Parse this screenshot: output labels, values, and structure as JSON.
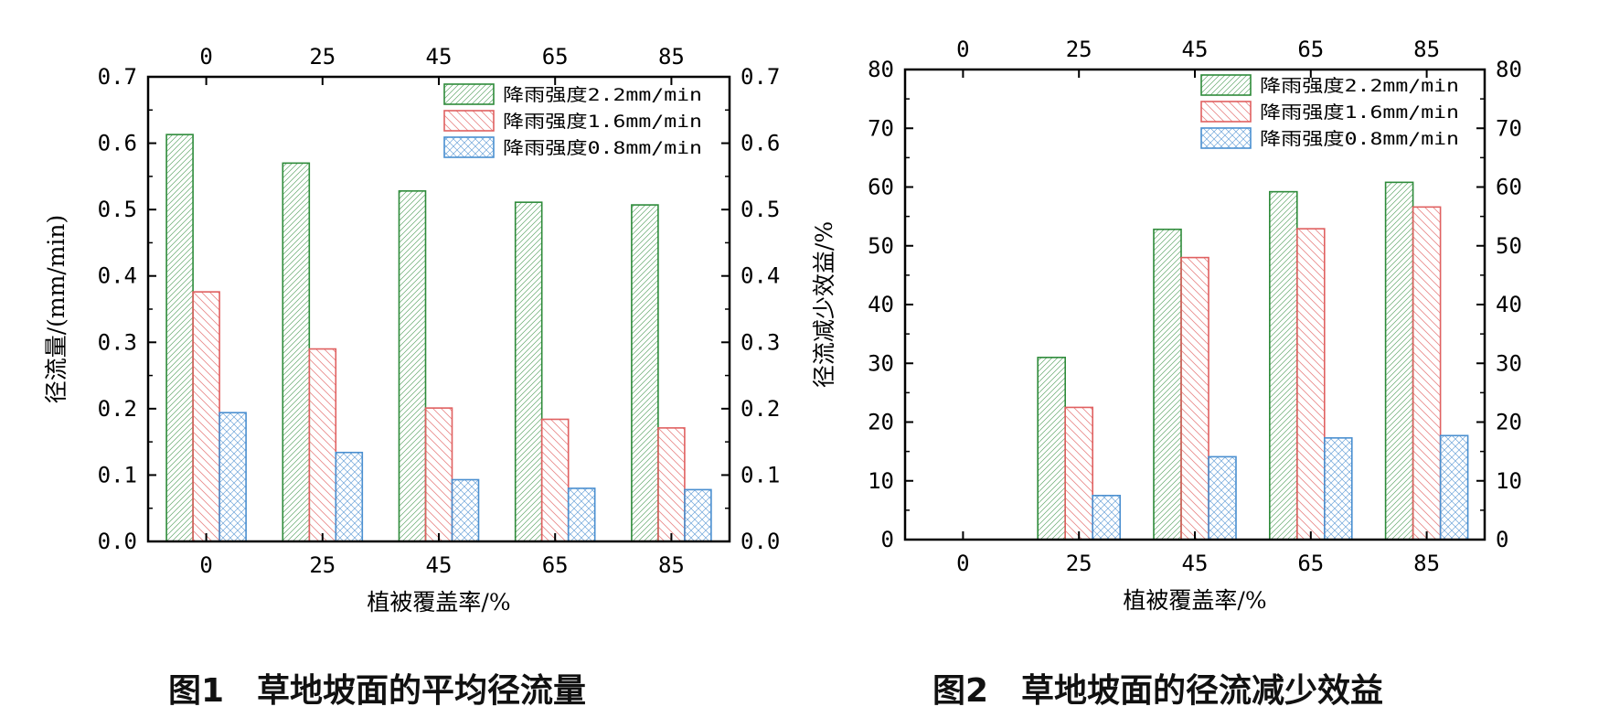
{
  "captions": {
    "fig1": "图1　草地坡面的平均径流量",
    "fig2": "图2　草地坡面的径流减少效益"
  },
  "colors": {
    "green": "#2e8b3a",
    "red": "#e06060",
    "blue": "#4a8fd0"
  },
  "chart_data": [
    {
      "type": "bar",
      "categories": [
        "0",
        "25",
        "45",
        "65",
        "85"
      ],
      "series": [
        {
          "name": "降雨强度2.2mm/min",
          "values": [
            0.613,
            0.57,
            0.528,
            0.511,
            0.507
          ]
        },
        {
          "name": "降雨强度1.6mm/min",
          "values": [
            0.376,
            0.29,
            0.201,
            0.184,
            0.171
          ]
        },
        {
          "name": "降雨强度0.8mm/min",
          "values": [
            0.194,
            0.134,
            0.093,
            0.08,
            0.078
          ]
        }
      ],
      "xlabel": "植被覆盖率/%",
      "ylabel": "径流量/(mm/min)",
      "ylim": [
        0,
        0.7
      ],
      "yticks": [
        "0.0",
        "0.1",
        "0.2",
        "0.3",
        "0.4",
        "0.5",
        "0.6",
        "0.7"
      ],
      "legend_position": "top-right",
      "grid": false
    },
    {
      "type": "bar",
      "categories": [
        "0",
        "25",
        "45",
        "65",
        "85"
      ],
      "series": [
        {
          "name": "降雨强度2.2mm/min",
          "values": [
            0,
            31.0,
            52.8,
            59.2,
            60.8
          ]
        },
        {
          "name": "降雨强度1.6mm/min",
          "values": [
            0,
            22.5,
            48.0,
            52.9,
            56.6
          ]
        },
        {
          "name": "降雨强度0.8mm/min",
          "values": [
            0,
            7.5,
            14.1,
            17.3,
            17.7
          ]
        }
      ],
      "xlabel": "植被覆盖率/%",
      "ylabel": "径流减少效益/%",
      "ylim": [
        0,
        80
      ],
      "yticks": [
        "0",
        "10",
        "20",
        "30",
        "40",
        "50",
        "60",
        "70",
        "80"
      ],
      "legend_position": "top-right",
      "grid": false
    }
  ]
}
